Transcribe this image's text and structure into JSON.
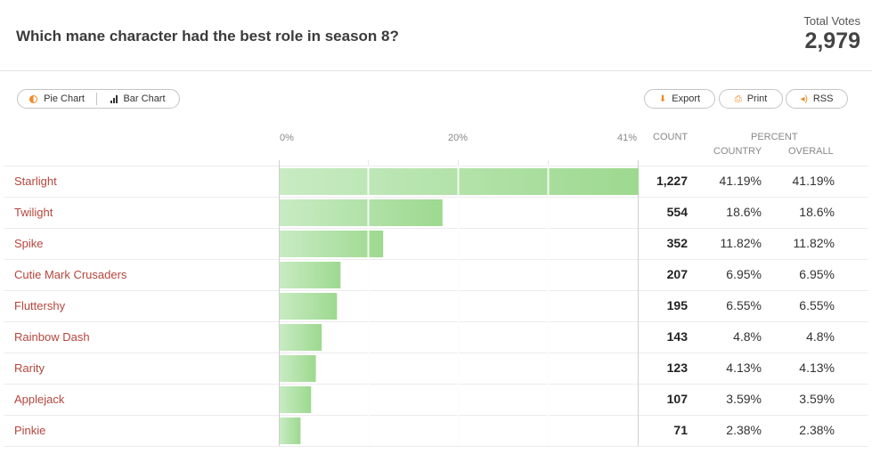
{
  "header": {
    "question": "Which mane character had the best role in season 8?",
    "total_label": "Total Votes",
    "total_value": "2,979"
  },
  "toolbar": {
    "pie_label": "Pie Chart",
    "bar_label": "Bar Chart",
    "export_label": "Export",
    "print_label": "Print",
    "rss_label": "RSS"
  },
  "columns": {
    "count": "COUNT",
    "percent": "PERCENT",
    "country": "COUNTRY",
    "overall": "OVERALL"
  },
  "colors": {
    "bar_light": "#c8ebc3",
    "bar_dark": "#9dd98f",
    "label": "#b5463c",
    "accent": "#f08a24"
  },
  "chart_data": {
    "type": "bar",
    "orientation": "horizontal",
    "categories": [
      "Starlight",
      "Twilight",
      "Spike",
      "Cutie Mark Crusaders",
      "Fluttershy",
      "Rainbow Dash",
      "Rarity",
      "Applejack",
      "Pinkie"
    ],
    "counts": [
      "1,227",
      "554",
      "352",
      "207",
      "195",
      "143",
      "123",
      "107",
      "71"
    ],
    "values": [
      41.19,
      18.6,
      11.82,
      6.95,
      6.55,
      4.8,
      4.13,
      3.59,
      2.38
    ],
    "percent_country": [
      "41.19%",
      "18.6%",
      "11.82%",
      "6.95%",
      "6.55%",
      "4.8%",
      "4.13%",
      "3.59%",
      "2.38%"
    ],
    "percent_overall": [
      "41.19%",
      "18.6%",
      "11.82%",
      "6.95%",
      "6.55%",
      "4.8%",
      "4.13%",
      "3.59%",
      "2.38%"
    ],
    "xlim": [
      0,
      41
    ],
    "xticks": [
      "0%",
      "20%",
      "41%"
    ],
    "grid": true
  }
}
